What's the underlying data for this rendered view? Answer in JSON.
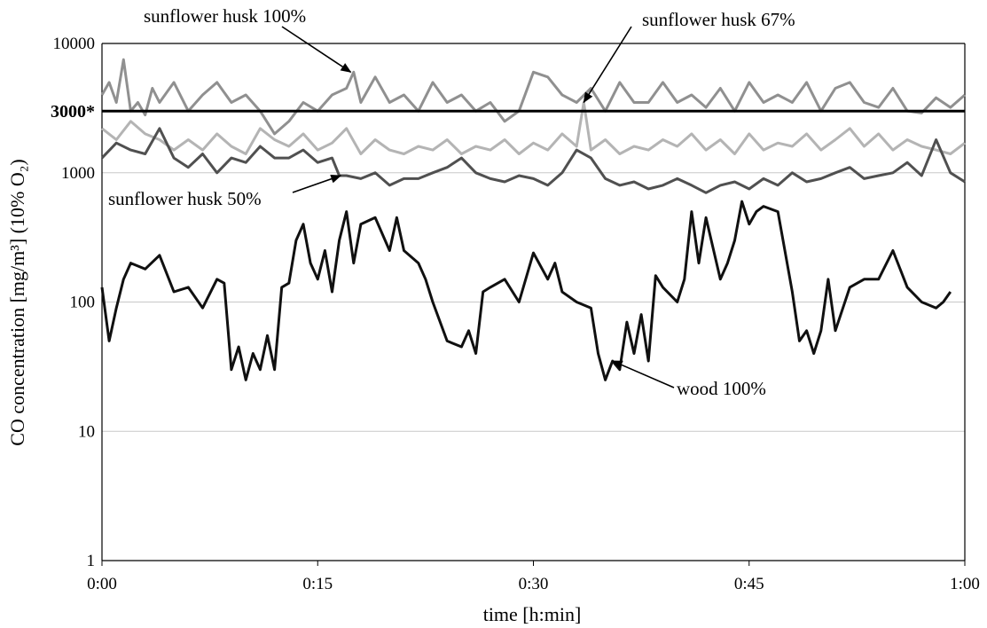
{
  "chart_data": {
    "type": "line",
    "y_scale": "log",
    "ylim": [
      1,
      10000
    ],
    "xlim_minutes": [
      0,
      60
    ],
    "yticks": [
      {
        "value": 1,
        "label": "1"
      },
      {
        "value": 10,
        "label": "10"
      },
      {
        "value": 100,
        "label": "100"
      },
      {
        "value": 1000,
        "label": "1000"
      },
      {
        "value": 10000,
        "label": "10000"
      }
    ],
    "xticks": [
      {
        "value": 0,
        "label": "0:00"
      },
      {
        "value": 15,
        "label": "0:15"
      },
      {
        "value": 30,
        "label": "0:30"
      },
      {
        "value": 45,
        "label": "0:45"
      },
      {
        "value": 60,
        "label": "1:00"
      }
    ],
    "xlabel": "time [h:min]",
    "ylabel": "CO concentration [mg/m³] (10% O₂)",
    "grid": "horizontal",
    "reference_line": {
      "value": 3000,
      "label": "3000*"
    },
    "series": [
      {
        "name": "sunflower husk 100%",
        "color": "#909090",
        "x": [
          0,
          0.5,
          1,
          1.5,
          2,
          2.5,
          3,
          3.5,
          4,
          5,
          6,
          7,
          8,
          9,
          10,
          11,
          12,
          13,
          14,
          15,
          16,
          17,
          17.5,
          18,
          19,
          20,
          21,
          22,
          23,
          24,
          25,
          26,
          27,
          28,
          29,
          30,
          31,
          32,
          33,
          34,
          35,
          36,
          37,
          38,
          39,
          40,
          41,
          42,
          43,
          44,
          45,
          46,
          47,
          48,
          49,
          50,
          51,
          52,
          53,
          54,
          55,
          56,
          57,
          58,
          59,
          60
        ],
        "y": [
          4000,
          5000,
          3500,
          7500,
          3000,
          3500,
          2800,
          4500,
          3500,
          5000,
          3000,
          4000,
          5000,
          3500,
          4000,
          3000,
          2000,
          2500,
          3500,
          3000,
          4000,
          4500,
          6000,
          3500,
          5500,
          3500,
          4000,
          3000,
          5000,
          3500,
          4000,
          3000,
          3500,
          2500,
          3000,
          6000,
          5500,
          4000,
          3500,
          4500,
          3000,
          5000,
          3500,
          3500,
          5000,
          3500,
          4000,
          3200,
          4500,
          3000,
          5000,
          3500,
          4000,
          3500,
          5000,
          3000,
          4500,
          5000,
          3500,
          3200,
          4500,
          3000,
          2900,
          3800,
          3200,
          4000
        ]
      },
      {
        "name": "sunflower husk 67%",
        "color": "#b4b4b4",
        "x": [
          0,
          1,
          2,
          3,
          4,
          5,
          6,
          7,
          8,
          9,
          10,
          11,
          12,
          13,
          14,
          15,
          16,
          17,
          18,
          19,
          20,
          21,
          22,
          23,
          24,
          25,
          26,
          27,
          28,
          29,
          30,
          31,
          32,
          33,
          33.5,
          34,
          35,
          36,
          37,
          38,
          39,
          40,
          41,
          42,
          43,
          44,
          45,
          46,
          47,
          48,
          49,
          50,
          51,
          52,
          53,
          54,
          55,
          56,
          57,
          58,
          59,
          60
        ],
        "y": [
          2200,
          1800,
          2500,
          2000,
          1800,
          1500,
          1800,
          1500,
          2000,
          1600,
          1400,
          2200,
          1800,
          1600,
          2000,
          1500,
          1700,
          2200,
          1400,
          1800,
          1500,
          1400,
          1600,
          1500,
          1800,
          1400,
          1600,
          1500,
          1800,
          1400,
          1700,
          1500,
          2000,
          1600,
          3500,
          1500,
          1800,
          1400,
          1600,
          1500,
          1800,
          1600,
          2000,
          1500,
          1800,
          1400,
          2000,
          1500,
          1700,
          1600,
          2000,
          1500,
          1800,
          2200,
          1600,
          2000,
          1500,
          1800,
          1600,
          1500,
          1400,
          1700
        ]
      },
      {
        "name": "sunflower husk 50%",
        "color": "#505050",
        "x": [
          0,
          1,
          2,
          3,
          4,
          5,
          6,
          7,
          8,
          9,
          10,
          11,
          12,
          13,
          14,
          15,
          16,
          16.5,
          17,
          18,
          19,
          20,
          21,
          22,
          23,
          24,
          25,
          26,
          27,
          28,
          29,
          30,
          31,
          32,
          33,
          34,
          35,
          36,
          37,
          38,
          39,
          40,
          41,
          42,
          43,
          44,
          45,
          46,
          47,
          48,
          49,
          50,
          51,
          52,
          53,
          54,
          55,
          56,
          57,
          58,
          59,
          60
        ],
        "y": [
          1300,
          1700,
          1500,
          1400,
          2200,
          1300,
          1100,
          1400,
          1000,
          1300,
          1200,
          1600,
          1300,
          1300,
          1500,
          1200,
          1300,
          950,
          950,
          900,
          1000,
          800,
          900,
          900,
          1000,
          1100,
          1300,
          1000,
          900,
          850,
          950,
          900,
          800,
          1000,
          1500,
          1300,
          900,
          800,
          850,
          750,
          800,
          900,
          800,
          700,
          800,
          850,
          750,
          900,
          800,
          1000,
          850,
          900,
          1000,
          1100,
          900,
          950,
          1000,
          1200,
          950,
          1800,
          1000,
          850
        ]
      },
      {
        "name": "wood 100%",
        "color": "#101010",
        "x": [
          0,
          0.5,
          1,
          1.5,
          2,
          3,
          4,
          5,
          6,
          7,
          8,
          8.5,
          9,
          9.5,
          10,
          10.5,
          11,
          11.5,
          12,
          12.5,
          13,
          13.5,
          14,
          14.5,
          15,
          15.5,
          16,
          16.5,
          17,
          17.5,
          18,
          19,
          20,
          20.5,
          21,
          22,
          22.5,
          23,
          24,
          25,
          25.5,
          26,
          26.5,
          27,
          28,
          29,
          30,
          31,
          31.5,
          32,
          33,
          34,
          34.5,
          35,
          35.5,
          36,
          36.5,
          37,
          37.5,
          38,
          38.5,
          39,
          40,
          40.5,
          41,
          41.5,
          42,
          43,
          43.5,
          44,
          44.5,
          45,
          45.5,
          46,
          47,
          48,
          48.5,
          49,
          49.5,
          50,
          50.5,
          51,
          52,
          53,
          54,
          55,
          56,
          57,
          58,
          58.5,
          59
        ],
        "y": [
          130,
          50,
          90,
          150,
          200,
          180,
          230,
          120,
          130,
          90,
          150,
          140,
          30,
          45,
          25,
          40,
          30,
          55,
          30,
          130,
          140,
          300,
          400,
          200,
          150,
          250,
          120,
          300,
          500,
          200,
          400,
          450,
          250,
          450,
          250,
          200,
          150,
          100,
          50,
          45,
          60,
          40,
          120,
          130,
          150,
          100,
          240,
          150,
          200,
          120,
          100,
          90,
          40,
          25,
          35,
          30,
          70,
          40,
          80,
          35,
          160,
          130,
          100,
          150,
          500,
          200,
          450,
          150,
          200,
          300,
          600,
          400,
          500,
          550,
          500,
          120,
          50,
          60,
          40,
          60,
          150,
          60,
          130,
          150,
          150,
          250,
          130,
          100,
          90,
          100,
          120
        ]
      }
    ],
    "annotations": [
      {
        "text": "sunflower husk 100%",
        "series": "sunflower husk 100%"
      },
      {
        "text": "sunflower husk 67%",
        "series": "sunflower husk 67%"
      },
      {
        "text": "sunflower husk 50%",
        "series": "sunflower husk 50%"
      },
      {
        "text": "wood 100%",
        "series": "wood 100%"
      }
    ]
  }
}
